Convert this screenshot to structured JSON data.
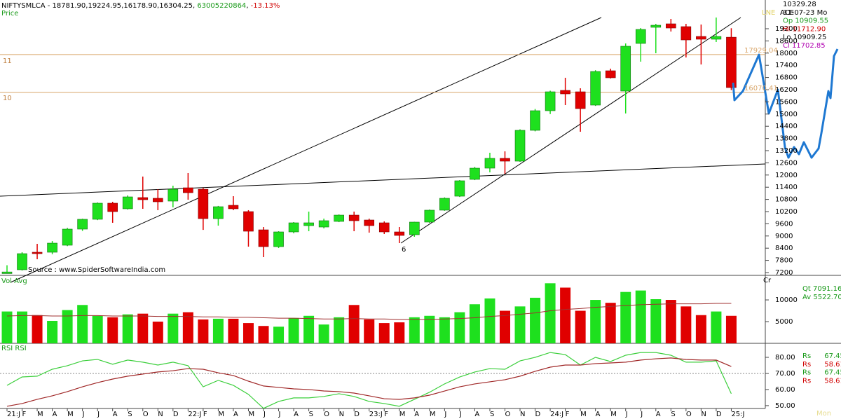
{
  "chart_data": [
    {
      "type": "candlestick",
      "title": "Price",
      "header": [
        "NIFTYSMLCA - 18781.90,19224.95,16178.90,16304.25, ",
        "63005220864",
        ", ",
        "-13.13%"
      ],
      "categories": [
        "21:J",
        "F",
        "M",
        "A",
        "M",
        "J",
        "J",
        "A",
        "S",
        "O",
        "N",
        "D",
        "22:J",
        "F",
        "M",
        "A",
        "M",
        "J",
        "J",
        "A",
        "S",
        "O",
        "N",
        "D",
        "23:J",
        "F",
        "M",
        "A",
        "M",
        "J",
        "J",
        "A",
        "S",
        "O",
        "N",
        "D",
        "24:J",
        "F",
        "M",
        "A",
        "M",
        "J",
        "J",
        "A",
        "S",
        "O",
        "N",
        "D",
        "25:J"
      ],
      "open": [
        7150,
        7338,
        8200,
        8200,
        8545,
        9338,
        9821,
        10614,
        10338,
        10890,
        10855,
        10717,
        11372,
        11300,
        9855,
        10510,
        10200,
        9303,
        8476,
        9200,
        9510,
        9441,
        9717,
        10027,
        9786,
        9648,
        9200,
        9062,
        9683,
        10270,
        10958,
        11786,
        12338,
        12820,
        12682,
        14200,
        15165,
        16165,
        16096,
        15441,
        17131,
        16131,
        18476,
        19269,
        19441,
        19303,
        18820,
        18683,
        18781.9
      ],
      "high": [
        7560,
        8200,
        8614,
        8750,
        9400,
        9850,
        10650,
        10683,
        11000,
        11924,
        11300,
        11476,
        12097,
        11372,
        10480,
        10958,
        10270,
        9441,
        9234,
        9683,
        10200,
        9855,
        10060,
        10200,
        9855,
        9717,
        9441,
        9700,
        10300,
        10900,
        11750,
        12400,
        13096,
        13165,
        14250,
        15250,
        16150,
        16786,
        16269,
        17160,
        17234,
        18476,
        19234,
        19441,
        19683,
        19441,
        19407,
        19751,
        19224.95
      ],
      "low": [
        7150,
        7300,
        7855,
        8100,
        8500,
        9250,
        9780,
        9650,
        10300,
        10338,
        10270,
        10410,
        10786,
        9300,
        9510,
        10270,
        8476,
        7958,
        8406,
        9130,
        9234,
        9372,
        9680,
        9234,
        9165,
        9096,
        8648,
        8960,
        9650,
        10240,
        10920,
        11750,
        12131,
        12062,
        12650,
        14150,
        15000,
        15441,
        14130,
        15400,
        16750,
        15030,
        17579,
        17993,
        19062,
        17786,
        17441,
        18545,
        16178.9
      ],
      "close": [
        7230,
        8131,
        8131,
        8648,
        9338,
        9821,
        10614,
        10200,
        10924,
        10786,
        10683,
        11300,
        11131,
        9855,
        10441,
        10338,
        9234,
        8476,
        9200,
        9648,
        9648,
        9752,
        10027,
        9752,
        9510,
        9200,
        9027,
        9683,
        10270,
        10855,
        11717,
        12338,
        12820,
        12682,
        14200,
        15165,
        16096,
        15993,
        15269,
        17096,
        16786,
        18338,
        19165,
        19372,
        19234,
        18648,
        18683,
        18820,
        16304.25
      ],
      "up_color": "#1ee01e",
      "down_color": "#e00000",
      "ylim": [
        7062,
        20441
      ],
      "yticks": [
        7200,
        7800,
        8400,
        9000,
        9600,
        10200,
        10800,
        11400,
        12000,
        12600,
        13200,
        13800,
        14400,
        15000,
        15600,
        16200,
        16800,
        17400,
        18000,
        18600,
        19200
      ],
      "hlines": [
        17929.04,
        16070.41
      ],
      "hline_color": "#d9a66a",
      "annotations": [
        "11",
        "10",
        "6",
        "Source : www.SpiderSoftwareIndia.com",
        "LNE",
        "ACE"
      ],
      "info": [
        {
          "text": "10329.28",
          "color": "#000000"
        },
        {
          "text": "31-07-23 Mo",
          "color": "#000000"
        },
        {
          "text": "Op 10909.55",
          "color": "#1a9a1a"
        },
        {
          "text": "Hi 11712.90",
          "color": "#d00000"
        },
        {
          "text": "Lo 10909.25",
          "color": "#000000"
        },
        {
          "text": "Cl 11702.85",
          "color": "#b000b0"
        }
      ]
    },
    {
      "type": "bar",
      "title": "Vol Avg",
      "values": [
        7333,
        7333,
        6500,
        5167,
        7667,
        8833,
        6333,
        6000,
        6667,
        6833,
        5000,
        6833,
        7167,
        5500,
        5667,
        5667,
        4667,
        4000,
        3833,
        5833,
        6333,
        4333,
        6000,
        8833,
        5500,
        4667,
        4833,
        6000,
        6333,
        6000,
        7167,
        9000,
        10333,
        7500,
        8500,
        10500,
        13833,
        12833,
        7500,
        10000,
        9333,
        11833,
        12167,
        10167,
        10000,
        8500,
        6500,
        7333,
        6333
      ],
      "avg": [
        6300,
        6400,
        6400,
        6300,
        6300,
        6400,
        6400,
        6300,
        6300,
        6300,
        6200,
        6200,
        6200,
        6100,
        6100,
        6000,
        6000,
        5900,
        5800,
        5800,
        5700,
        5600,
        5600,
        5700,
        5600,
        5600,
        5500,
        5500,
        5500,
        5600,
        5700,
        5900,
        6200,
        6400,
        6700,
        7000,
        7500,
        7800,
        8000,
        8300,
        8500,
        8700,
        8900,
        9000,
        9100,
        9100,
        9100,
        9200,
        9200
      ],
      "avg_color": "#a03030",
      "ylim": [
        0,
        15333
      ],
      "yticks": [
        5000,
        10000
      ],
      "corner_label": "Cr",
      "info": [
        {
          "text": "Qt 7091.16",
          "color": "#1a9a1a"
        },
        {
          "text": "Av 5522.70",
          "color": "#1a9a1a"
        }
      ]
    },
    {
      "type": "line",
      "title": "RSI RSI",
      "series": [
        {
          "color": "#3ccf3c",
          "values": [
            62.6,
            67.8,
            68.3,
            72.6,
            74.8,
            77.8,
            78.7,
            75.7,
            78.3,
            77.0,
            75.2,
            77.0,
            74.8,
            61.7,
            65.7,
            62.6,
            57.0,
            48.3,
            52.6,
            54.8,
            54.8,
            55.7,
            57.4,
            55.7,
            52.6,
            51.3,
            49.6,
            53.9,
            58.3,
            63.5,
            67.8,
            70.9,
            73.0,
            72.6,
            77.8,
            80.0,
            83.0,
            81.7,
            75.2,
            80.0,
            77.4,
            81.3,
            83.0,
            83.0,
            81.3,
            77.0,
            77.0,
            77.8,
            57.4
          ]
        },
        {
          "color": "#a02828",
          "values": [
            49.6,
            51.3,
            53.9,
            56.1,
            58.7,
            61.7,
            64.3,
            66.5,
            68.3,
            69.6,
            70.9,
            71.7,
            73.0,
            72.6,
            70.4,
            68.7,
            65.2,
            62.2,
            61.3,
            60.4,
            60.0,
            59.1,
            58.7,
            57.8,
            56.1,
            54.3,
            53.9,
            54.8,
            56.5,
            59.1,
            61.7,
            63.5,
            64.8,
            66.1,
            68.3,
            71.3,
            73.9,
            75.2,
            75.2,
            76.1,
            76.5,
            77.0,
            78.3,
            79.1,
            79.6,
            78.7,
            78.3,
            78.3,
            74.3
          ]
        }
      ],
      "ylim": [
        41.7,
        88.7
      ],
      "yticks": [
        {
          "value": 50,
          "label": "50.00"
        },
        {
          "value": 60,
          "label": "60.00"
        },
        {
          "value": 70,
          "label": "70.00"
        },
        {
          "value": 80,
          "label": "80.00"
        }
      ],
      "reference_line": 70,
      "info": [
        {
          "text": "Rs      67.45",
          "color": "#1a9a1a"
        },
        {
          "text": "Rs      58.61",
          "color": "#d00000"
        },
        {
          "text": "Rs      67.45",
          "color": "#1a9a1a"
        },
        {
          "text": "Rs      58.61",
          "color": "#d00000"
        }
      ],
      "footer": "Mon"
    }
  ]
}
